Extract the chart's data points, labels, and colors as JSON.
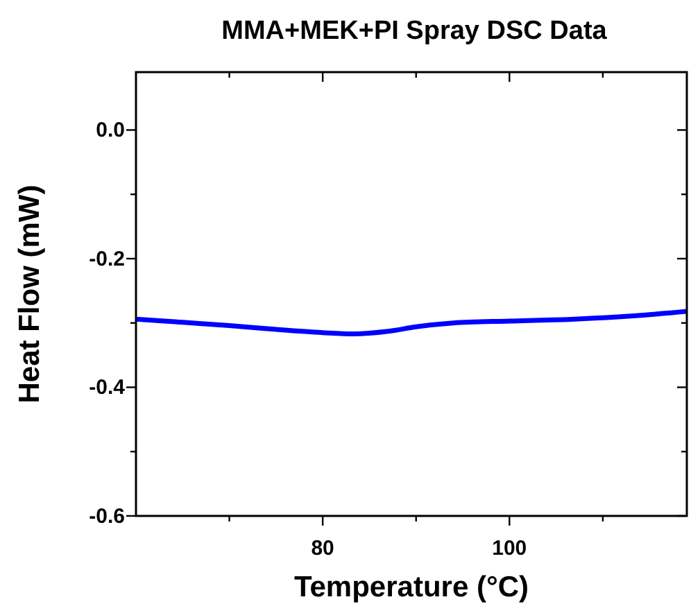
{
  "chart_data": {
    "type": "line",
    "title": "MMA+MEK+PI Spray DSC Data",
    "xlabel": "Temperature (°C)",
    "ylabel": "Heat Flow (mW)",
    "xlim": [
      60,
      119
    ],
    "xticks": [
      {
        "value": 70,
        "label": null
      },
      80,
      {
        "value": 90,
        "label": null
      },
      100,
      {
        "value": 110,
        "label": null
      }
    ],
    "ylim": [
      -0.6,
      0.09
    ],
    "yticks": [
      {
        "value": -0.6,
        "label": "-0.6"
      },
      {
        "value": -0.5,
        "label": null
      },
      {
        "value": -0.4,
        "label": "-0.4"
      },
      {
        "value": -0.3,
        "label": null
      },
      {
        "value": -0.2,
        "label": "-0.2"
      },
      {
        "value": -0.1,
        "label": null
      },
      {
        "value": 0,
        "label": "0.0"
      }
    ],
    "grid": false,
    "marker": "none",
    "line_style": "solid",
    "series": [
      {
        "color": "#0000ff",
        "x": [
          60,
          65,
          70,
          75,
          80,
          83.3,
          87,
          90,
          94,
          100,
          107,
          113.3,
          119
        ],
        "values": [
          -0.294,
          -0.299,
          -0.304,
          -0.31,
          -0.315,
          -0.317,
          -0.313,
          -0.306,
          -0.3,
          -0.297,
          -0.294,
          -0.289,
          -0.282
        ]
      }
    ]
  }
}
